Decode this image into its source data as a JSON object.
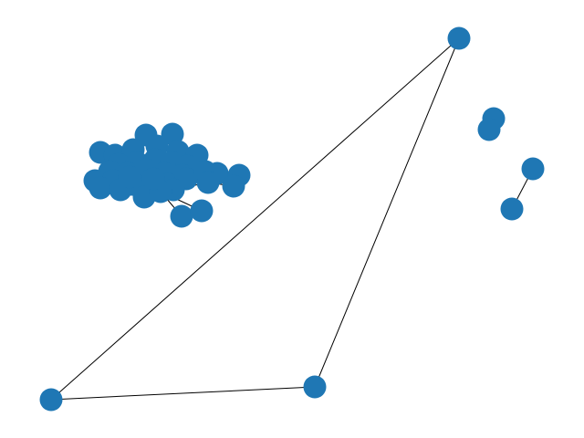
{
  "graph": {
    "node_color": "#1f77b4",
    "edge_color": "#000000",
    "components": [
      {
        "id": "dense-cluster",
        "node_count": 40
      },
      {
        "id": "triangle",
        "node_count": 3
      },
      {
        "id": "overlapping-pair",
        "node_count": 2
      },
      {
        "id": "connected-pair",
        "node_count": 2
      }
    ]
  }
}
